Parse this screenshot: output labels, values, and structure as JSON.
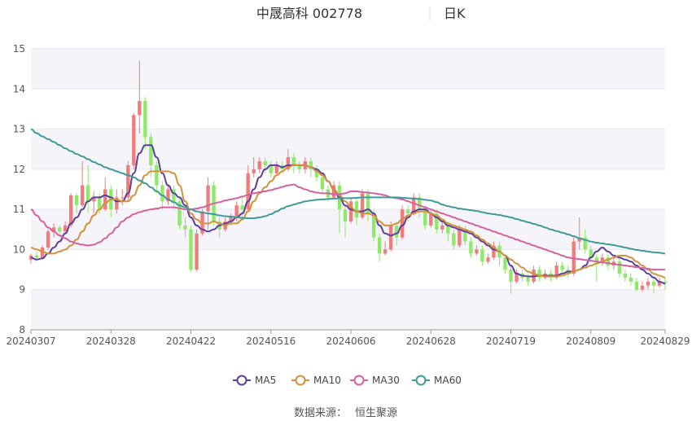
{
  "header": {
    "title": "中晟高科 002778",
    "period": "日K"
  },
  "source_label": "数据来源：",
  "source_name": "恒生聚源",
  "legend": [
    {
      "name": "MA5",
      "color": "#5b3f9e"
    },
    {
      "name": "MA10",
      "color": "#d4913c"
    },
    {
      "name": "MA30",
      "color": "#d6609f"
    },
    {
      "name": "MA60",
      "color": "#3f9a9a"
    }
  ],
  "colors": {
    "up": "#f07b7b",
    "down": "#8fe86a"
  },
  "chart_data": {
    "type": "candlestick",
    "title": "中晟高科 002778",
    "y_ticks": [
      8,
      9,
      10,
      11,
      12,
      13,
      14,
      15
    ],
    "ylim": [
      8,
      15
    ],
    "x_labels": [
      "20240307",
      "20240328",
      "20240422",
      "20240516",
      "20240606",
      "20240628",
      "20240719",
      "20240809",
      "20240829"
    ],
    "x_label_index": [
      0,
      14,
      28,
      42,
      56,
      70,
      84,
      98,
      111
    ],
    "n_bars": 112,
    "candles": [
      [
        9.75,
        9.85,
        9.65,
        9.9
      ],
      [
        9.85,
        9.8,
        9.7,
        9.95
      ],
      [
        9.8,
        10.05,
        9.75,
        10.1
      ],
      [
        10.05,
        10.45,
        10.0,
        10.5
      ],
      [
        10.45,
        10.55,
        10.3,
        10.65
      ],
      [
        10.55,
        10.45,
        10.3,
        10.6
      ],
      [
        10.45,
        10.6,
        10.4,
        10.7
      ],
      [
        10.6,
        11.35,
        10.55,
        11.4
      ],
      [
        11.35,
        11.1,
        10.9,
        11.4
      ],
      [
        11.1,
        11.6,
        11.05,
        12.2
      ],
      [
        11.6,
        11.2,
        10.9,
        12.1
      ],
      [
        11.2,
        11.3,
        10.9,
        11.45
      ],
      [
        11.3,
        11.0,
        10.9,
        11.4
      ],
      [
        11.0,
        11.5,
        10.95,
        11.8
      ],
      [
        11.5,
        11.0,
        10.8,
        11.6
      ],
      [
        11.0,
        11.3,
        10.9,
        11.5
      ],
      [
        11.3,
        11.3,
        11.1,
        11.5
      ],
      [
        11.3,
        12.1,
        11.2,
        12.2
      ],
      [
        12.1,
        13.35,
        12.0,
        13.4
      ],
      [
        13.35,
        13.7,
        12.9,
        14.7
      ],
      [
        13.7,
        12.8,
        12.5,
        13.8
      ],
      [
        12.8,
        12.1,
        11.8,
        12.9
      ],
      [
        12.1,
        11.6,
        11.4,
        12.2
      ],
      [
        11.6,
        11.2,
        11.0,
        11.7
      ],
      [
        11.2,
        11.5,
        11.1,
        11.6
      ],
      [
        11.5,
        11.2,
        11.0,
        11.6
      ],
      [
        11.2,
        10.6,
        10.5,
        11.3
      ],
      [
        10.6,
        10.5,
        10.3,
        10.8
      ],
      [
        10.5,
        9.5,
        9.45,
        10.6
      ],
      [
        9.5,
        10.4,
        9.45,
        10.5
      ],
      [
        10.4,
        10.95,
        10.35,
        11.0
      ],
      [
        10.95,
        11.6,
        10.5,
        11.8
      ],
      [
        11.6,
        10.7,
        10.6,
        11.7
      ],
      [
        10.7,
        10.5,
        10.3,
        10.8
      ],
      [
        10.5,
        10.7,
        10.45,
        10.8
      ],
      [
        10.7,
        10.8,
        10.6,
        10.9
      ],
      [
        10.8,
        11.1,
        10.7,
        11.2
      ],
      [
        11.1,
        11.0,
        10.8,
        11.3
      ],
      [
        11.0,
        11.9,
        10.95,
        12.1
      ],
      [
        11.9,
        12.0,
        11.8,
        12.3
      ],
      [
        12.0,
        12.2,
        11.9,
        12.3
      ],
      [
        12.2,
        12.1,
        11.9,
        12.3
      ],
      [
        12.1,
        11.9,
        11.8,
        12.2
      ],
      [
        11.9,
        12.1,
        11.85,
        12.2
      ],
      [
        12.1,
        12.0,
        11.9,
        12.2
      ],
      [
        12.0,
        12.3,
        11.95,
        12.5
      ],
      [
        12.3,
        12.1,
        11.9,
        12.4
      ],
      [
        12.1,
        12.0,
        11.9,
        12.2
      ],
      [
        12.0,
        12.2,
        11.9,
        12.3
      ],
      [
        12.2,
        12.0,
        11.8,
        12.3
      ],
      [
        12.0,
        11.8,
        11.7,
        12.1
      ],
      [
        11.8,
        11.5,
        11.4,
        11.9
      ],
      [
        11.5,
        11.3,
        11.2,
        11.6
      ],
      [
        11.3,
        11.6,
        11.25,
        11.7
      ],
      [
        11.6,
        11.0,
        10.4,
        11.7
      ],
      [
        11.0,
        10.7,
        10.3,
        11.1
      ],
      [
        10.7,
        11.2,
        10.65,
        11.3
      ],
      [
        11.2,
        10.8,
        10.6,
        11.3
      ],
      [
        10.8,
        11.4,
        10.75,
        11.5
      ],
      [
        11.4,
        10.9,
        10.7,
        11.5
      ],
      [
        10.9,
        10.3,
        10.2,
        11.0
      ],
      [
        10.3,
        9.9,
        9.7,
        10.4
      ],
      [
        9.9,
        10.0,
        9.85,
        10.2
      ],
      [
        10.0,
        10.6,
        9.95,
        10.7
      ],
      [
        10.6,
        10.3,
        10.1,
        10.7
      ],
      [
        10.3,
        11.0,
        10.25,
        11.1
      ],
      [
        11.0,
        10.9,
        10.7,
        11.1
      ],
      [
        10.9,
        11.3,
        10.85,
        11.4
      ],
      [
        11.3,
        11.0,
        10.8,
        11.4
      ],
      [
        11.0,
        10.6,
        10.5,
        11.1
      ],
      [
        10.6,
        10.9,
        10.55,
        11.0
      ],
      [
        10.9,
        10.5,
        10.4,
        11.0
      ],
      [
        10.5,
        10.6,
        10.4,
        10.7
      ],
      [
        10.6,
        10.4,
        10.2,
        10.7
      ],
      [
        10.4,
        10.1,
        10.0,
        10.5
      ],
      [
        10.1,
        10.5,
        10.05,
        10.6
      ],
      [
        10.5,
        10.2,
        10.1,
        10.6
      ],
      [
        10.2,
        9.9,
        9.8,
        10.3
      ],
      [
        9.9,
        10.0,
        9.85,
        10.1
      ],
      [
        10.0,
        9.7,
        9.6,
        10.1
      ],
      [
        9.7,
        9.8,
        9.65,
        9.9
      ],
      [
        9.8,
        10.1,
        9.75,
        10.2
      ],
      [
        10.1,
        9.8,
        9.6,
        10.2
      ],
      [
        9.8,
        9.5,
        9.4,
        9.9
      ],
      [
        9.5,
        9.2,
        8.9,
        9.6
      ],
      [
        9.2,
        9.4,
        9.15,
        9.5
      ],
      [
        9.4,
        9.3,
        9.2,
        9.5
      ],
      [
        9.3,
        9.2,
        9.1,
        9.4
      ],
      [
        9.2,
        9.5,
        9.15,
        9.6
      ],
      [
        9.5,
        9.3,
        9.2,
        9.6
      ],
      [
        9.3,
        9.4,
        9.25,
        9.5
      ],
      [
        9.4,
        9.3,
        9.2,
        9.5
      ],
      [
        9.3,
        9.6,
        9.25,
        9.7
      ],
      [
        9.6,
        9.5,
        9.4,
        9.7
      ],
      [
        9.5,
        9.4,
        9.3,
        9.6
      ],
      [
        9.4,
        10.2,
        9.35,
        10.3
      ],
      [
        10.2,
        10.3,
        10.0,
        10.8
      ],
      [
        10.3,
        10.0,
        9.9,
        10.5
      ],
      [
        10.0,
        9.8,
        9.7,
        10.1
      ],
      [
        9.8,
        9.7,
        9.2,
        9.9
      ],
      [
        9.7,
        9.8,
        9.6,
        9.9
      ],
      [
        9.8,
        9.6,
        9.5,
        9.9
      ],
      [
        9.6,
        9.7,
        9.5,
        9.8
      ],
      [
        9.7,
        9.4,
        9.3,
        9.8
      ],
      [
        9.4,
        9.3,
        9.2,
        9.5
      ],
      [
        9.3,
        9.2,
        9.1,
        9.4
      ],
      [
        9.2,
        9.0,
        8.95,
        9.3
      ],
      [
        9.0,
        9.1,
        8.95,
        9.2
      ],
      [
        9.1,
        9.2,
        9.0,
        9.3
      ],
      [
        9.2,
        9.1,
        8.9,
        9.3
      ],
      [
        9.1,
        9.2,
        9.05,
        9.3
      ],
      [
        9.2,
        9.15,
        9.0,
        9.3
      ]
    ],
    "ma_series": [
      {
        "name": "MA5",
        "values": [
          9.8,
          9.75,
          9.78,
          9.9,
          10.05,
          10.2,
          10.4,
          10.65,
          10.8,
          11.0,
          11.2,
          11.3,
          11.3,
          11.35,
          11.3,
          11.2,
          11.2,
          11.4,
          11.9,
          12.4,
          12.6,
          12.6,
          12.3,
          11.9,
          11.6,
          11.4,
          11.3,
          11.1,
          10.8,
          10.6,
          10.5,
          10.45,
          10.5,
          10.6,
          10.65,
          10.7,
          10.8,
          10.9,
          11.2,
          11.5,
          11.8,
          12.0,
          12.1,
          12.1,
          12.05,
          12.1,
          12.1,
          12.1,
          12.1,
          12.05,
          12.0,
          11.9,
          11.7,
          11.5,
          11.3,
          11.1,
          11.0,
          10.95,
          10.95,
          11.0,
          10.9,
          10.6,
          10.4,
          10.35,
          10.4,
          10.6,
          10.8,
          10.95,
          11.0,
          11.0,
          10.9,
          10.8,
          10.7,
          10.6,
          10.55,
          10.5,
          10.45,
          10.4,
          10.3,
          10.2,
          10.1,
          10.0,
          9.95,
          9.85,
          9.6,
          9.4,
          9.35,
          9.33,
          9.33,
          9.35,
          9.35,
          9.35,
          9.35,
          9.4,
          9.45,
          9.45,
          9.5,
          9.6,
          9.8,
          9.95,
          10.05,
          9.95,
          9.85,
          9.8,
          9.75,
          9.7,
          9.6,
          9.5,
          9.4,
          9.3,
          9.2,
          9.15
        ]
      },
      {
        "name": "MA10",
        "values": [
          10.05,
          10.0,
          9.95,
          9.9,
          9.9,
          9.95,
          10.0,
          10.1,
          10.25,
          10.45,
          10.65,
          10.85,
          11.0,
          11.15,
          11.25,
          11.25,
          11.2,
          11.2,
          11.35,
          11.6,
          11.85,
          11.95,
          11.95,
          11.95,
          11.95,
          11.9,
          11.6,
          11.2,
          10.9,
          10.75,
          10.65,
          10.65,
          10.7,
          10.65,
          10.6,
          10.65,
          10.65,
          10.75,
          10.95,
          11.2,
          11.4,
          11.55,
          11.7,
          11.85,
          11.95,
          12.05,
          12.1,
          12.1,
          12.1,
          12.05,
          11.95,
          11.85,
          11.7,
          11.5,
          11.35,
          11.2,
          11.05,
          10.95,
          10.9,
          10.9,
          10.85,
          10.7,
          10.6,
          10.6,
          10.65,
          10.75,
          10.85,
          10.9,
          10.95,
          10.95,
          10.9,
          10.85,
          10.75,
          10.65,
          10.6,
          10.55,
          10.5,
          10.45,
          10.35,
          10.25,
          10.15,
          10.05,
          9.95,
          9.85,
          9.75,
          9.65,
          9.55,
          9.45,
          9.4,
          9.35,
          9.33,
          9.33,
          9.33,
          9.35,
          9.4,
          9.45,
          9.5,
          9.55,
          9.6,
          9.65,
          9.7,
          9.75,
          9.8,
          9.85,
          9.85,
          9.8,
          9.7,
          9.6,
          9.5,
          9.4,
          9.35,
          9.3
        ]
      },
      {
        "name": "MA30",
        "values": [
          11.0,
          10.85,
          10.7,
          10.55,
          10.45,
          10.35,
          10.28,
          10.2,
          10.15,
          10.12,
          10.1,
          10.12,
          10.18,
          10.28,
          10.4,
          10.55,
          10.7,
          10.8,
          10.88,
          10.93,
          10.97,
          11.0,
          11.02,
          11.05,
          11.05,
          11.05,
          11.03,
          11.0,
          11.0,
          11.02,
          11.05,
          11.1,
          11.15,
          11.18,
          11.22,
          11.25,
          11.28,
          11.32,
          11.36,
          11.4,
          11.43,
          11.45,
          11.48,
          11.52,
          11.56,
          11.6,
          11.62,
          11.55,
          11.5,
          11.45,
          11.42,
          11.4,
          11.4,
          11.38,
          11.38,
          11.4,
          11.45,
          11.45,
          11.43,
          11.42,
          11.4,
          11.38,
          11.35,
          11.3,
          11.28,
          11.25,
          11.2,
          11.15,
          11.1,
          11.05,
          11.0,
          10.95,
          10.9,
          10.85,
          10.8,
          10.75,
          10.7,
          10.65,
          10.6,
          10.55,
          10.5,
          10.45,
          10.4,
          10.35,
          10.3,
          10.25,
          10.2,
          10.15,
          10.1,
          10.05,
          10.0,
          9.95,
          9.9,
          9.85,
          9.8,
          9.78,
          9.76,
          9.74,
          9.72,
          9.7,
          9.68,
          9.66,
          9.64,
          9.62,
          9.6,
          9.58,
          9.56,
          9.54,
          9.52,
          9.5,
          9.5,
          9.5
        ]
      },
      {
        "name": "MA60",
        "values": [
          13.0,
          12.9,
          12.82,
          12.75,
          12.68,
          12.6,
          12.52,
          12.45,
          12.38,
          12.32,
          12.25,
          12.18,
          12.12,
          12.05,
          12.0,
          11.95,
          11.9,
          11.85,
          11.8,
          11.72,
          11.65,
          11.55,
          11.45,
          11.35,
          11.25,
          11.18,
          11.1,
          11.05,
          11.0,
          10.95,
          10.92,
          10.9,
          10.88,
          10.85,
          10.83,
          10.82,
          10.8,
          10.79,
          10.78,
          10.78,
          10.8,
          10.83,
          10.88,
          10.95,
          11.02,
          11.08,
          11.12,
          11.16,
          11.2,
          11.22,
          11.24,
          11.25,
          11.26,
          11.27,
          11.28,
          11.28,
          11.28,
          11.29,
          11.3,
          11.3,
          11.3,
          11.3,
          11.3,
          11.3,
          11.3,
          11.29,
          11.28,
          11.27,
          11.26,
          11.24,
          11.22,
          11.18,
          11.12,
          11.08,
          11.05,
          11.02,
          11.0,
          10.98,
          10.96,
          10.93,
          10.9,
          10.88,
          10.86,
          10.83,
          10.8,
          10.76,
          10.72,
          10.68,
          10.64,
          10.6,
          10.55,
          10.5,
          10.46,
          10.42,
          10.38,
          10.33,
          10.28,
          10.24,
          10.2,
          10.17,
          10.15,
          10.13,
          10.11,
          10.08,
          10.05,
          10.02,
          9.99,
          9.97,
          9.95,
          9.93,
          9.92,
          9.9
        ]
      }
    ]
  }
}
